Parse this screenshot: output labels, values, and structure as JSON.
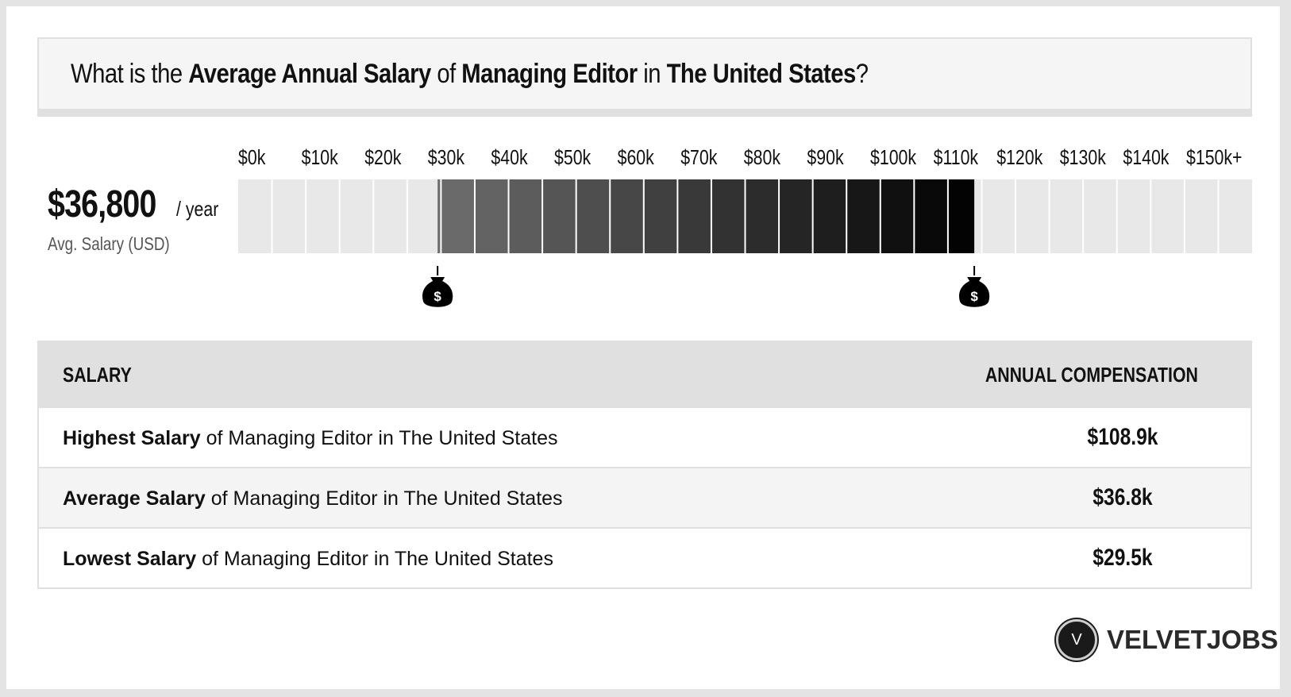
{
  "title": {
    "part1": "What is the ",
    "b1": "Average Annual Salary",
    "part2": " of ",
    "b2": "Managing Editor",
    "part3": " in ",
    "b3": "The United States",
    "part4": "?"
  },
  "average": {
    "value": "$36,800",
    "unit": "/ year",
    "label": "Avg. Salary (USD)"
  },
  "chart_data": {
    "type": "bar",
    "tick_labels": [
      "$0k",
      "$10k",
      "$20k",
      "$30k",
      "$40k",
      "$50k",
      "$60k",
      "$70k",
      "$80k",
      "$90k",
      "$100k",
      "$110k",
      "$120k",
      "$130k",
      "$140k",
      "$150k+"
    ],
    "range_low_k": 29.5,
    "range_high_k": 108.9,
    "average_k": 36.8,
    "xlim_k": [
      0,
      150
    ],
    "segment_width_k": 5,
    "marker_icon": "money-bag-icon",
    "colors": {
      "empty": "#e8e8e8",
      "range_start": "#6e6e6e",
      "range_end": "#000000",
      "divider": "#ffffff"
    }
  },
  "table": {
    "headers": {
      "salary": "SALARY",
      "annual": "ANNUAL COMPENSATION"
    },
    "rows": [
      {
        "bold": "Highest Salary",
        "rest": " of Managing Editor in The United States",
        "value": "$108.9k"
      },
      {
        "bold": "Average Salary",
        "rest": " of Managing Editor in The United States",
        "value": "$36.8k"
      },
      {
        "bold": "Lowest Salary",
        "rest": " of Managing Editor in The United States",
        "value": "$29.5k"
      }
    ]
  },
  "logo": {
    "letter": "V",
    "text": "VELVETJOBS"
  }
}
